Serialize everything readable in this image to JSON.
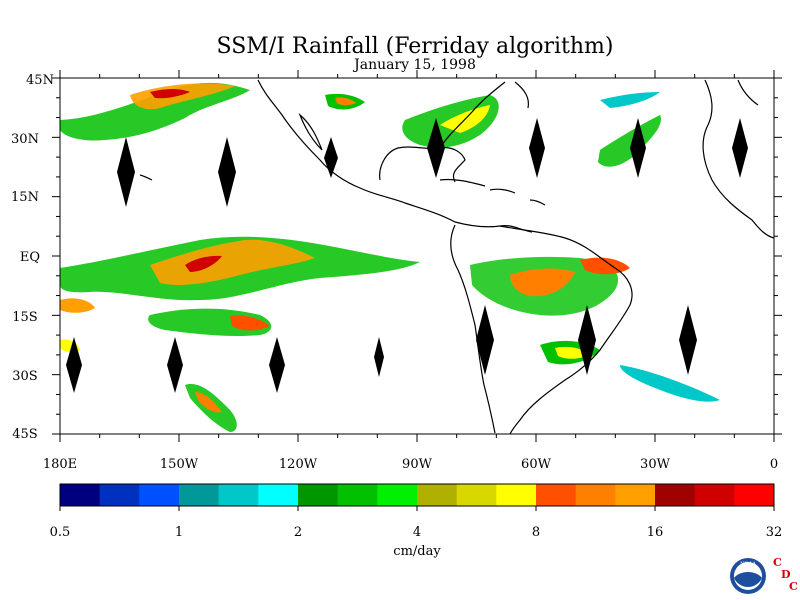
{
  "title": "SSM/I Rainfall (Ferriday algorithm)",
  "subtitle": "January 15, 1998",
  "lat_labels": [
    "45N",
    "30N",
    "15N",
    "EQ",
    "15S",
    "30S",
    "45S"
  ],
  "lon_labels": [
    "180E",
    "150W",
    "120W",
    "90W",
    "60W",
    "30W",
    "0"
  ],
  "colorbar": {
    "unit": "cm/day",
    "tick_labels": [
      "0.5",
      "1",
      "2",
      "4",
      "8",
      "16",
      "32"
    ],
    "colors": [
      "#00007f",
      "#0030c0",
      "#0050ff",
      "#009898",
      "#00c8c8",
      "#00ffff",
      "#009600",
      "#00c000",
      "#00f000",
      "#b0b000",
      "#d8d800",
      "#ffff00",
      "#ff5000",
      "#ff8000",
      "#ffa000",
      "#a00000",
      "#d00000",
      "#ff0000"
    ]
  },
  "logo": {
    "noaa_text": "NOAA",
    "cdc_letters": [
      "C",
      "D",
      "C"
    ]
  },
  "map": {
    "lon_range": [
      -180,
      0
    ],
    "lat_range": [
      -45,
      45
    ]
  }
}
